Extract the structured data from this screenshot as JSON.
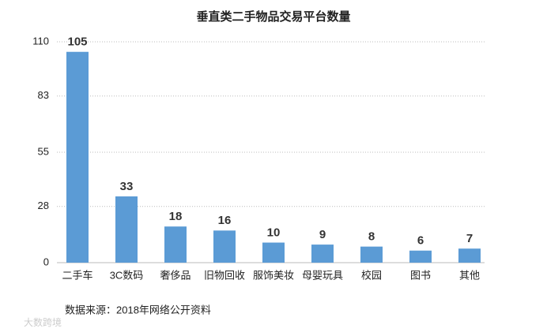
{
  "chart_data": {
    "type": "bar",
    "title": "垂直类二手物品交易平台数量",
    "categories": [
      "二手车",
      "3C数码",
      "奢侈品",
      "旧物回收",
      "服饰美妆",
      "母婴玩具",
      "校园",
      "图书",
      "其他"
    ],
    "values": [
      105,
      33,
      18,
      16,
      10,
      9,
      8,
      6,
      7
    ],
    "color": "#5b9bd5",
    "ylim": [
      0,
      110
    ],
    "yticks": [
      0,
      28,
      55,
      83,
      110
    ],
    "grid": true,
    "source": "数据来源：2018年网络公开资料",
    "watermark": "大数跨境"
  }
}
